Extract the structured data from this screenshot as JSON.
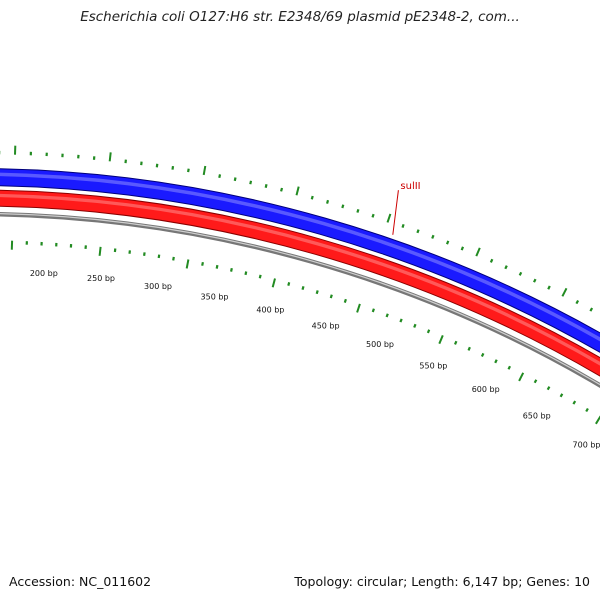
{
  "title": "Escherichia coli O127:H6 str. E2348/69 plasmid pE2348-2, com...",
  "footer": {
    "accession": "Accession: NC_011602",
    "summary": "Topology: circular; Length: 6,147 bp; Genes: 10"
  },
  "map": {
    "ring_colors": {
      "outer_band": "#1a1aff",
      "outer_band_edge": "#00007a",
      "inner_band": "#ff1a1a",
      "inner_band_edge": "#8a0000",
      "backbone": "#777777",
      "ticks": "#228b22",
      "gene_label": "#cc0000"
    },
    "gene_labels": [
      {
        "text": "sulII"
      }
    ],
    "bp_labels": [
      {
        "text": "200 bp",
        "bp": 200
      },
      {
        "text": "250 bp",
        "bp": 250
      },
      {
        "text": "300 bp",
        "bp": 300
      },
      {
        "text": "350 bp",
        "bp": 350
      },
      {
        "text": "400 bp",
        "bp": 400
      },
      {
        "text": "450 bp",
        "bp": 450
      },
      {
        "text": "500 bp",
        "bp": 500
      },
      {
        "text": "550 bp",
        "bp": 550
      },
      {
        "text": "600 bp",
        "bp": 600
      },
      {
        "text": "650 bp",
        "bp": 650
      },
      {
        "text": "700 bp",
        "bp": 700
      }
    ]
  }
}
